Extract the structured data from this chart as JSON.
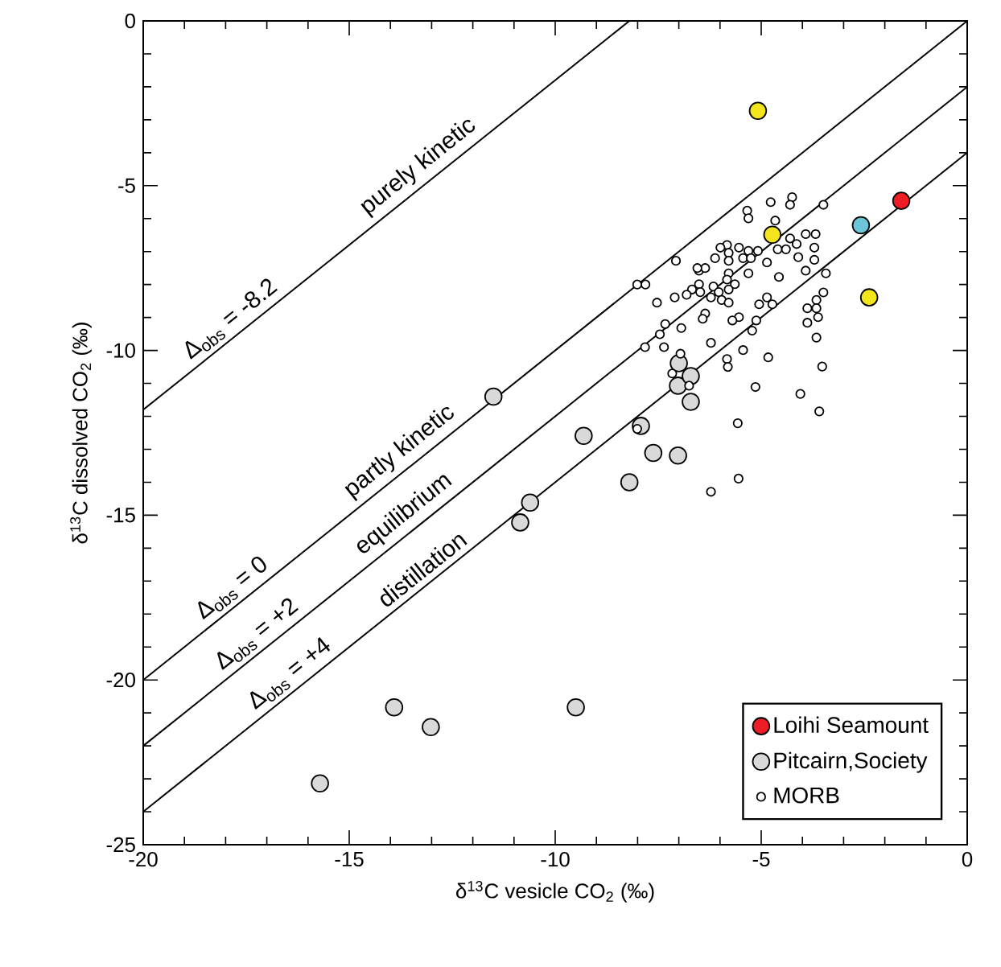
{
  "chart_data": {
    "type": "scatter",
    "xlabel": "δ$^{13}$C vesicle CO$_{2}$ (‰)",
    "ylabel": "δ$^{13}$C dissolved CO$_{2}$ (‰)",
    "xlim": [
      -20,
      0
    ],
    "ylim": [
      -25,
      0
    ],
    "xticks": [
      -20,
      -15,
      -10,
      -5,
      0
    ],
    "yticks": [
      -25,
      -20,
      -15,
      -10,
      -5,
      0
    ],
    "legend": "bottom right",
    "annotations": [
      {
        "text": "purely kinetic",
        "x": -13.05,
        "y": -4.85
      },
      {
        "text": "partly kinetic",
        "x": -13.5,
        "y": -13.5
      },
      {
        "text": "equilibrium",
        "x": -13.4,
        "y": -15.4
      },
      {
        "text": "distillation",
        "x": -13.0,
        "y": -17.0
      }
    ],
    "series": [
      {
        "type": "line",
        "marker": "none",
        "name": "Δ$_{obs}$ = -8.2",
        "color": "#000000",
        "x": [
          -20,
          -8.2
        ],
        "values": [
          -11.8,
          0
        ]
      },
      {
        "type": "line",
        "marker": "none",
        "name": "Δ$_{obs}$ = 0",
        "color": "#000000",
        "x": [
          -20,
          0
        ],
        "values": [
          -20,
          0
        ]
      },
      {
        "type": "line",
        "marker": "none",
        "name": "Δ$_{obs}$ = +2",
        "color": "#000000",
        "x": [
          -20,
          0
        ],
        "values": [
          -22,
          -2
        ]
      },
      {
        "type": "line",
        "marker": "none",
        "name": "Δ$_{obs}$ = +4",
        "color": "#000000",
        "x": [
          -20,
          0
        ],
        "values": [
          -24,
          -4
        ]
      },
      {
        "marker": "circle",
        "name": "Loihi Seamount",
        "color": "#ee1c25",
        "x": [
          -1.6
        ],
        "values": [
          -5.46
        ]
      },
      {
        "marker": "circle",
        "name": "Pitcairn,Society",
        "color": "#d9d9d9",
        "x": [
          -11.5,
          -9.31,
          -7.92,
          -7.62,
          -7.02,
          -8.2,
          -10.61,
          -7.02,
          -6.71,
          -6.71,
          -7.0,
          -10.85,
          -13.91,
          -13.02,
          -9.5,
          -15.71
        ],
        "values": [
          -11.4,
          -12.59,
          -12.29,
          -13.11,
          -13.19,
          -14.0,
          -14.62,
          -11.07,
          -10.78,
          -11.56,
          -10.39,
          -15.22,
          -20.83,
          -21.43,
          -20.83,
          -23.14
        ]
      },
      {
        "marker": "circle",
        "name": "MORB",
        "color": "#ffffff",
        "x": [
          -4.77,
          -4.25,
          -4.3,
          -3.49,
          -5.34,
          -5.31,
          -4.66,
          -7.07,
          -8.01,
          -7.81,
          -5.83,
          -5.99,
          -5.54,
          -5.31,
          -5.08,
          -5.79,
          -6.12,
          -5.79,
          -5.44,
          -5.25,
          -4.86,
          -4.6,
          -4.4,
          -4.3,
          -4.14,
          -3.92,
          -3.68,
          -3.71,
          -4.1,
          -3.71,
          -3.92,
          -4.57,
          -3.43,
          -5.31,
          -5.79,
          -6.51,
          -6.36,
          -5.83,
          -5.64,
          -6.16,
          -6.51,
          -6.68,
          -6.48,
          -6.03,
          -5.79,
          -6.81,
          -7.1,
          -7.53,
          -6.22,
          -5.96,
          -5.79,
          -5.05,
          -4.86,
          -4.73,
          -6.36,
          -6.42,
          -5.54,
          -5.7,
          -5.12,
          -7.33,
          -6.94,
          -5.22,
          -3.88,
          -3.66,
          -3.66,
          -3.62,
          -3.88,
          -7.46,
          -3.66,
          -7.82,
          -7.36,
          -6.22,
          -5.44,
          -4.83,
          -6.96,
          -7.16,
          -6.75,
          -5.83,
          -5.81,
          -5.14,
          -4.05,
          -5.57,
          -8.01,
          -5.55,
          -6.22,
          -6.55,
          -3.52,
          -3.59,
          -3.49
        ],
        "values": [
          -5.5,
          -5.35,
          -5.58,
          -5.58,
          -5.76,
          -5.99,
          -6.06,
          -7.28,
          -8.0,
          -8.0,
          -6.8,
          -6.88,
          -6.88,
          -6.98,
          -6.98,
          -7.04,
          -7.2,
          -7.28,
          -7.2,
          -7.2,
          -7.33,
          -6.93,
          -6.93,
          -6.6,
          -6.77,
          -6.47,
          -6.47,
          -6.88,
          -7.17,
          -7.25,
          -7.58,
          -7.77,
          -7.66,
          -7.66,
          -7.66,
          -7.58,
          -7.5,
          -7.85,
          -7.99,
          -8.06,
          -7.99,
          -8.15,
          -8.23,
          -8.23,
          -8.15,
          -8.31,
          -8.39,
          -8.55,
          -8.39,
          -8.47,
          -8.55,
          -8.6,
          -8.39,
          -8.6,
          -8.88,
          -9.04,
          -8.99,
          -9.09,
          -9.09,
          -9.2,
          -9.32,
          -9.4,
          -8.72,
          -8.47,
          -8.72,
          -8.99,
          -9.16,
          -9.51,
          -9.61,
          -9.9,
          -9.9,
          -9.77,
          -9.99,
          -10.21,
          -10.1,
          -10.7,
          -11.07,
          -10.26,
          -10.5,
          -11.11,
          -11.32,
          -12.21,
          -12.38,
          -13.89,
          -14.29,
          -7.5,
          -10.49,
          -11.85,
          -8.24
        ]
      },
      {
        "marker": "circle",
        "color": "#f2e51c",
        "x": [
          -4.73,
          -2.38,
          -5.08
        ],
        "values": [
          -6.49,
          -8.39,
          -2.73
        ]
      },
      {
        "marker": "circle",
        "color": "#6cc5d9",
        "x": [
          -2.58
        ],
        "values": [
          -6.2
        ]
      }
    ]
  }
}
